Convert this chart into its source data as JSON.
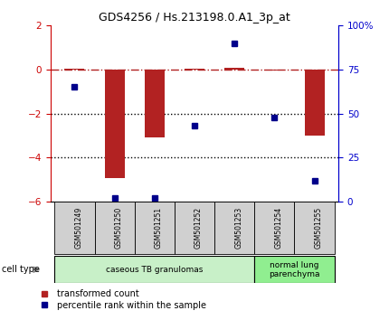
{
  "title": "GDS4256 / Hs.213198.0.A1_3p_at",
  "samples": [
    "GSM501249",
    "GSM501250",
    "GSM501251",
    "GSM501252",
    "GSM501253",
    "GSM501254",
    "GSM501255"
  ],
  "red_values": [
    0.05,
    -4.95,
    -3.1,
    0.05,
    0.1,
    -0.05,
    -3.0
  ],
  "blue_values": [
    65,
    2,
    2,
    43,
    90,
    48,
    12
  ],
  "ylim_left": [
    -6,
    2
  ],
  "ylim_right": [
    0,
    100
  ],
  "yticks_left": [
    -6,
    -4,
    -2,
    0,
    2
  ],
  "yticks_right": [
    0,
    25,
    50,
    75,
    100
  ],
  "yticklabels_right": [
    "0",
    "25",
    "50",
    "75",
    "100%"
  ],
  "bar_color": "#b22222",
  "dot_color": "#00008b",
  "cell_type_groups": [
    {
      "label": "caseous TB granulomas",
      "samples": [
        0,
        1,
        2,
        3,
        4
      ],
      "color": "#c8f0c8"
    },
    {
      "label": "normal lung\nparenchyma",
      "samples": [
        5,
        6
      ],
      "color": "#90ee90"
    }
  ],
  "legend_red": "transformed count",
  "legend_blue": "percentile rank within the sample",
  "cell_type_label": "cell type",
  "tick_color_left": "#cc0000",
  "tick_color_right": "#0000cc",
  "sample_box_color": "#d0d0d0",
  "bar_width": 0.5
}
